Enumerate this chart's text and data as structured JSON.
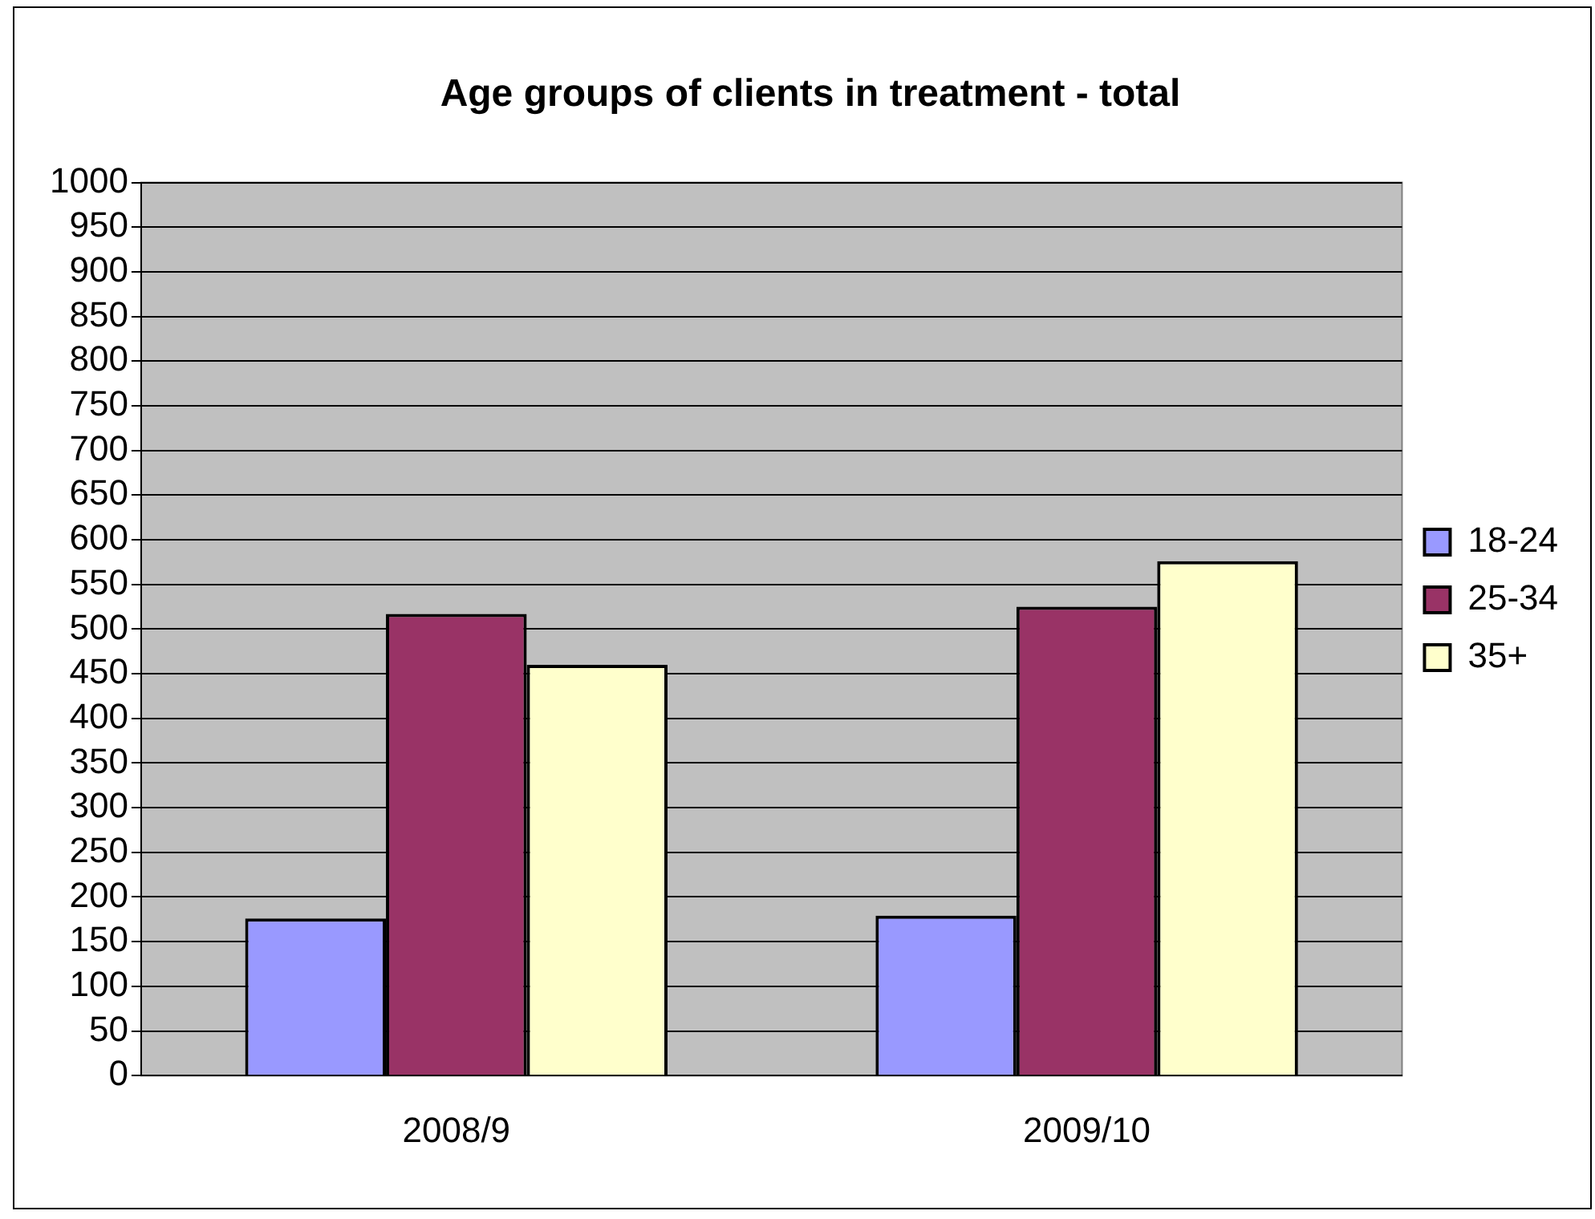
{
  "chart_data": {
    "type": "bar",
    "title": "Age groups of clients in treatment - total",
    "categories": [
      "2008/9",
      "2009/10"
    ],
    "series": [
      {
        "name": "18-24",
        "color": "#9999ff",
        "values": [
          176,
          179
        ]
      },
      {
        "name": "25-34",
        "color": "#993366",
        "values": [
          517,
          525
        ]
      },
      {
        "name": "35+",
        "color": "#ffffcc",
        "values": [
          460,
          576
        ]
      }
    ],
    "ylim": [
      0,
      1000
    ],
    "yticks": [
      0,
      50,
      100,
      150,
      200,
      250,
      300,
      350,
      400,
      450,
      500,
      550,
      600,
      650,
      700,
      750,
      800,
      850,
      900,
      950,
      1000
    ],
    "grid": "y",
    "legend": "right"
  }
}
